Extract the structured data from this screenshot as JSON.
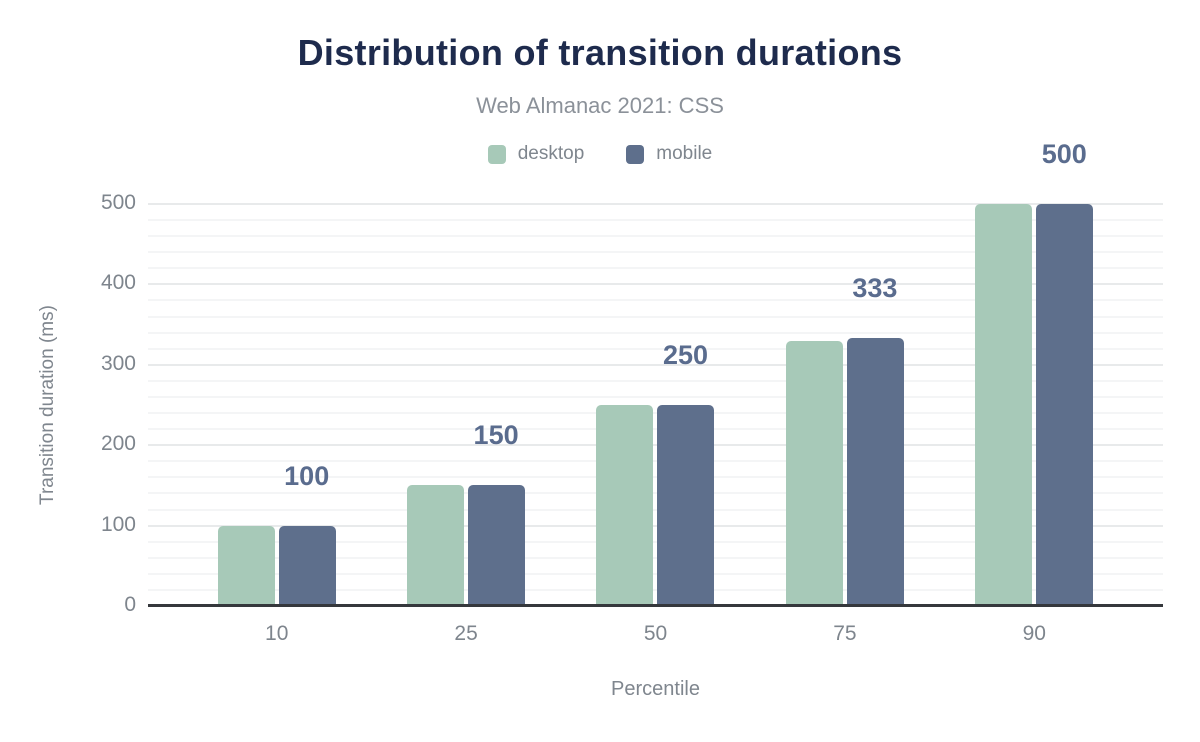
{
  "chart_data": {
    "type": "grouped_bar",
    "title": "Distribution of transition durations",
    "subtitle": "Web Almanac 2021: CSS",
    "categories": [
      "10",
      "25",
      "50",
      "75",
      "90"
    ],
    "series": [
      {
        "name": "desktop",
        "color": "#A7C9B8",
        "values": [
          100,
          150,
          250,
          330,
          500
        ]
      },
      {
        "name": "mobile",
        "color": "#5E6F8C",
        "values": [
          100,
          150,
          250,
          333,
          500
        ]
      }
    ],
    "bar_labels": [
      "100",
      "150",
      "250",
      "333",
      "500"
    ],
    "bar_labels_over_series": "mobile",
    "xlabel": "Percentile",
    "ylabel": "Transition duration (ms)",
    "ylim": [
      0,
      500
    ],
    "y_ticks": [
      "0",
      "100",
      "200",
      "300",
      "400",
      "500"
    ],
    "y_major_step": 100,
    "y_minor_step": 20,
    "grid": "horizontal-major-and-minor",
    "legend_position": "top-center"
  },
  "colors": {
    "title_text": "#1E2B4D",
    "subtitle_text": "#8B9199",
    "legend_text": "#7F868E",
    "axis_text": "#7E858D",
    "data_label_text": "#5A6C8E",
    "desktop_bar": "#A7C9B8",
    "mobile_bar": "#5E6F8C",
    "grid_major": "#E8EAEB",
    "grid_minor": "#F4F5F6",
    "axis_line": "#35383C",
    "background": "#FFFFFF"
  }
}
